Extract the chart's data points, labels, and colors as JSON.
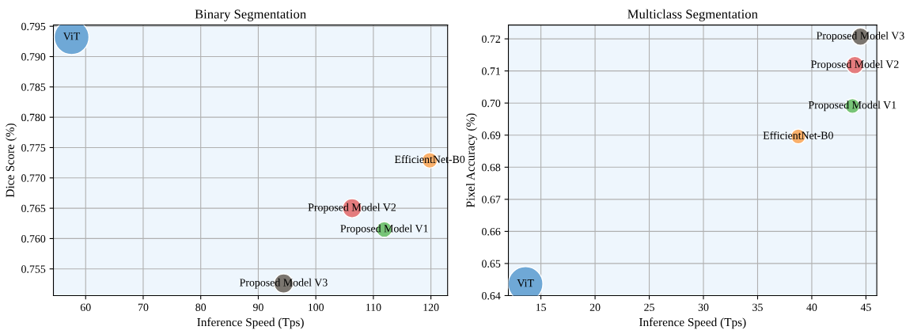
{
  "chart_data": [
    {
      "type": "bubble",
      "title": "Binary Segmentation",
      "xlabel": "Inference Speed (Tps)",
      "ylabel": "Dice Score (%)",
      "xlim": [
        54.4,
        122.9
      ],
      "xticks": [
        60,
        70,
        80,
        90,
        100,
        110,
        120
      ],
      "ylim": [
        0.7506,
        0.7952
      ],
      "yticks": [
        0.755,
        {
          "value": 0.76,
          "label": "0.760"
        },
        0.765,
        {
          "value": 0.77,
          "label": "0.770"
        },
        0.775,
        {
          "value": 0.78,
          "label": "0.780"
        },
        0.785,
        {
          "value": 0.79,
          "label": "0.790"
        },
        0.795
      ],
      "grid": true,
      "series": [
        {
          "x": [
            57.56,
            119.8,
            111.9,
            106.3,
            94.4
          ],
          "values": [
            0.7932,
            0.7729,
            0.7615,
            0.765,
            0.7526
          ],
          "sizes": [
            1,
            0.2,
            0.2,
            0.3,
            0.3
          ],
          "colors": [
            "#6fa8d6",
            "#f9b06b",
            "#77c477",
            "#e47c7e",
            "#7a756f"
          ]
        }
      ],
      "annotations": [
        {
          "text": "ViT",
          "x": 57.56,
          "y": 0.7932
        },
        {
          "text": "EfficientNet-B0",
          "x": 119.8,
          "y": 0.7729
        },
        {
          "text": "Proposed Model V1",
          "x": 111.9,
          "y": 0.7615
        },
        {
          "text": "Proposed Model V2",
          "x": 106.3,
          "y": 0.765
        },
        {
          "text": "Proposed Model V3",
          "x": 94.4,
          "y": 0.7526
        }
      ]
    },
    {
      "type": "bubble",
      "title": "Multiclass Segmentation",
      "xlabel": "Inference Speed (Tps)",
      "ylabel": "Pixel Accuracy (%)",
      "xlim": [
        12,
        46
      ],
      "xticks": [
        15,
        20,
        25,
        30,
        35,
        40,
        45
      ],
      "ylim": [
        0.64,
        0.7243
      ],
      "yticks": [
        0.64,
        0.65,
        0.66,
        0.67,
        0.68,
        0.69,
        {
          "value": 0.7,
          "label": "0.70"
        },
        0.71,
        0.72
      ],
      "grid": true,
      "series": [
        {
          "x": [
            13.58,
            38.75,
            43.75,
            43.98,
            44.49
          ],
          "values": [
            0.6436,
            0.6896,
            0.6991,
            0.7118,
            0.7207
          ],
          "sizes": [
            1,
            0.18,
            0.18,
            0.25,
            0.25
          ],
          "colors": [
            "#6fa8d6",
            "#f9b06b",
            "#77c477",
            "#e47c7e",
            "#7a756f"
          ]
        }
      ],
      "annotations": [
        {
          "text": "ViT",
          "x": 13.58,
          "y": 0.6436
        },
        {
          "text": "EfficientNet-B0",
          "x": 38.75,
          "y": 0.6896
        },
        {
          "text": "Proposed Model V1",
          "x": 43.75,
          "y": 0.6991
        },
        {
          "text": "Proposed Model V2",
          "x": 43.98,
          "y": 0.7118
        },
        {
          "text": "Proposed Model V3",
          "x": 44.49,
          "y": 0.7207
        }
      ]
    }
  ]
}
